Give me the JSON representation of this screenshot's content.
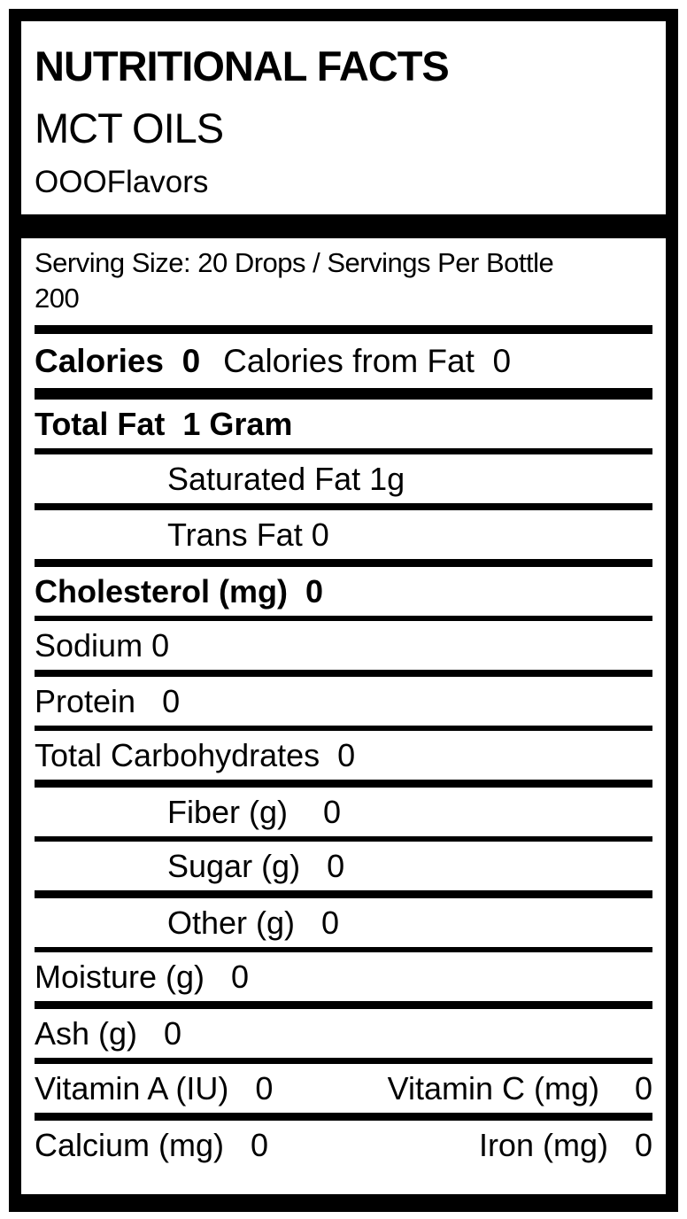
{
  "colors": {
    "text": "#000000",
    "background": "#ffffff",
    "border": "#000000"
  },
  "header": {
    "title": "NUTRITIONAL FACTS",
    "product": "MCT OILS",
    "brand": "OOOFlavors"
  },
  "serving": {
    "line1": "Serving Size: 20 Drops / Servings Per Bottle",
    "line2": "200"
  },
  "rows": {
    "calories_main": "Calories  0",
    "calories_from_fat": "Calories from Fat  0",
    "total_fat": "Total Fat  1 Gram",
    "saturated_fat": "Saturated Fat 1g",
    "trans_fat": "Trans Fat 0",
    "cholesterol": "Cholesterol (mg)  0",
    "sodium": "Sodium 0",
    "protein": "Protein   0",
    "total_carbohydrates": "Total Carbohydrates  0",
    "fiber": "Fiber (g)    0",
    "sugar": "Sugar (g)   0",
    "other": "Other (g)   0",
    "moisture": "Moisture (g)   0",
    "ash": "Ash (g)   0",
    "vitamin_a": "Vitamin A (IU)   0",
    "vitamin_c": "Vitamin C (mg)    0",
    "calcium": "Calcium (mg)   0",
    "iron": "Iron (mg)   0"
  }
}
